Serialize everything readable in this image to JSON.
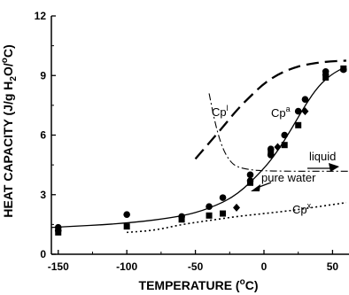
{
  "chart_data": {
    "type": "scatter",
    "title": "",
    "xlabel": "TEMPERATURE (",
    "xlabel_sup": "o",
    "xlabel_tail": "C)",
    "ylabel_a": "HEAT CAPACITY (J/g H",
    "ylabel_sub": "2",
    "ylabel_b": "O/",
    "ylabel_sup": "o",
    "ylabel_c": "C)",
    "xlim": [
      -155,
      62
    ],
    "ylim": [
      0,
      12
    ],
    "xticks": [
      -150,
      -100,
      -50,
      0,
      50
    ],
    "yticks": [
      0,
      3,
      6,
      9,
      12
    ],
    "grid": false,
    "series": [
      {
        "marker": "circle",
        "points": [
          [
            -150,
            1.2
          ],
          [
            -150,
            1.35
          ],
          [
            -100,
            2.0
          ],
          [
            -60,
            1.9
          ],
          [
            -40,
            2.4
          ],
          [
            -30,
            2.85
          ],
          [
            -10,
            3.7
          ],
          [
            -10,
            4.0
          ],
          [
            5,
            5.0
          ],
          [
            5,
            5.3
          ],
          [
            15,
            6.0
          ],
          [
            25,
            7.2
          ],
          [
            30,
            7.8
          ],
          [
            45,
            9.05
          ],
          [
            45,
            9.2
          ],
          [
            58,
            9.3
          ]
        ]
      },
      {
        "marker": "square",
        "points": [
          [
            -150,
            1.1
          ],
          [
            -100,
            1.4
          ],
          [
            -60,
            1.75
          ],
          [
            -40,
            1.95
          ],
          [
            -30,
            2.05
          ],
          [
            -10,
            3.6
          ],
          [
            5,
            5.1
          ],
          [
            15,
            5.5
          ],
          [
            25,
            6.5
          ],
          [
            45,
            8.9
          ],
          [
            58,
            9.35
          ]
        ]
      },
      {
        "marker": "diamond",
        "points": [
          [
            -20,
            2.35
          ],
          [
            10,
            5.4
          ],
          [
            30,
            7.2
          ]
        ]
      }
    ],
    "curves": [
      {
        "style": "solid",
        "points": [
          [
            -155,
            1.35
          ],
          [
            -100,
            1.55
          ],
          [
            -60,
            1.9
          ],
          [
            -40,
            2.3
          ],
          [
            -20,
            2.95
          ],
          [
            0,
            4.3
          ],
          [
            10,
            5.2
          ],
          [
            20,
            6.3
          ],
          [
            30,
            7.5
          ],
          [
            40,
            8.5
          ],
          [
            50,
            9.1
          ],
          [
            60,
            9.45
          ]
        ]
      },
      {
        "style": "long-dash",
        "points": [
          [
            -50,
            4.8
          ],
          [
            -40,
            5.6
          ],
          [
            -30,
            6.4
          ],
          [
            -20,
            7.25
          ],
          [
            -10,
            7.95
          ],
          [
            0,
            8.6
          ],
          [
            10,
            9.05
          ],
          [
            20,
            9.35
          ],
          [
            30,
            9.55
          ],
          [
            45,
            9.7
          ],
          [
            60,
            9.75
          ]
        ]
      },
      {
        "style": "dot",
        "points": [
          [
            -100,
            1.1
          ],
          [
            -80,
            1.2
          ],
          [
            -60,
            1.5
          ],
          [
            -40,
            1.7
          ],
          [
            -20,
            1.9
          ],
          [
            0,
            2.05
          ],
          [
            20,
            2.2
          ],
          [
            40,
            2.4
          ],
          [
            60,
            2.6
          ]
        ]
      },
      {
        "style": "dash-dot",
        "points": [
          [
            -40,
            8.1
          ],
          [
            -35,
            6.4
          ],
          [
            -30,
            5.3
          ],
          [
            -25,
            4.7
          ],
          [
            -20,
            4.4
          ],
          [
            -10,
            4.25
          ],
          [
            0,
            4.2
          ],
          [
            20,
            4.18
          ],
          [
            40,
            4.18
          ],
          [
            62,
            4.18
          ]
        ]
      }
    ],
    "annotations": {
      "cpl_main": "Cp",
      "cpl_sup": "l",
      "cpa_main": "Cp",
      "cpa_sup": "a",
      "cpx_main": "Cp",
      "cpx_sup": "x",
      "liquid": "liquid",
      "pure_water": "pure water"
    }
  }
}
